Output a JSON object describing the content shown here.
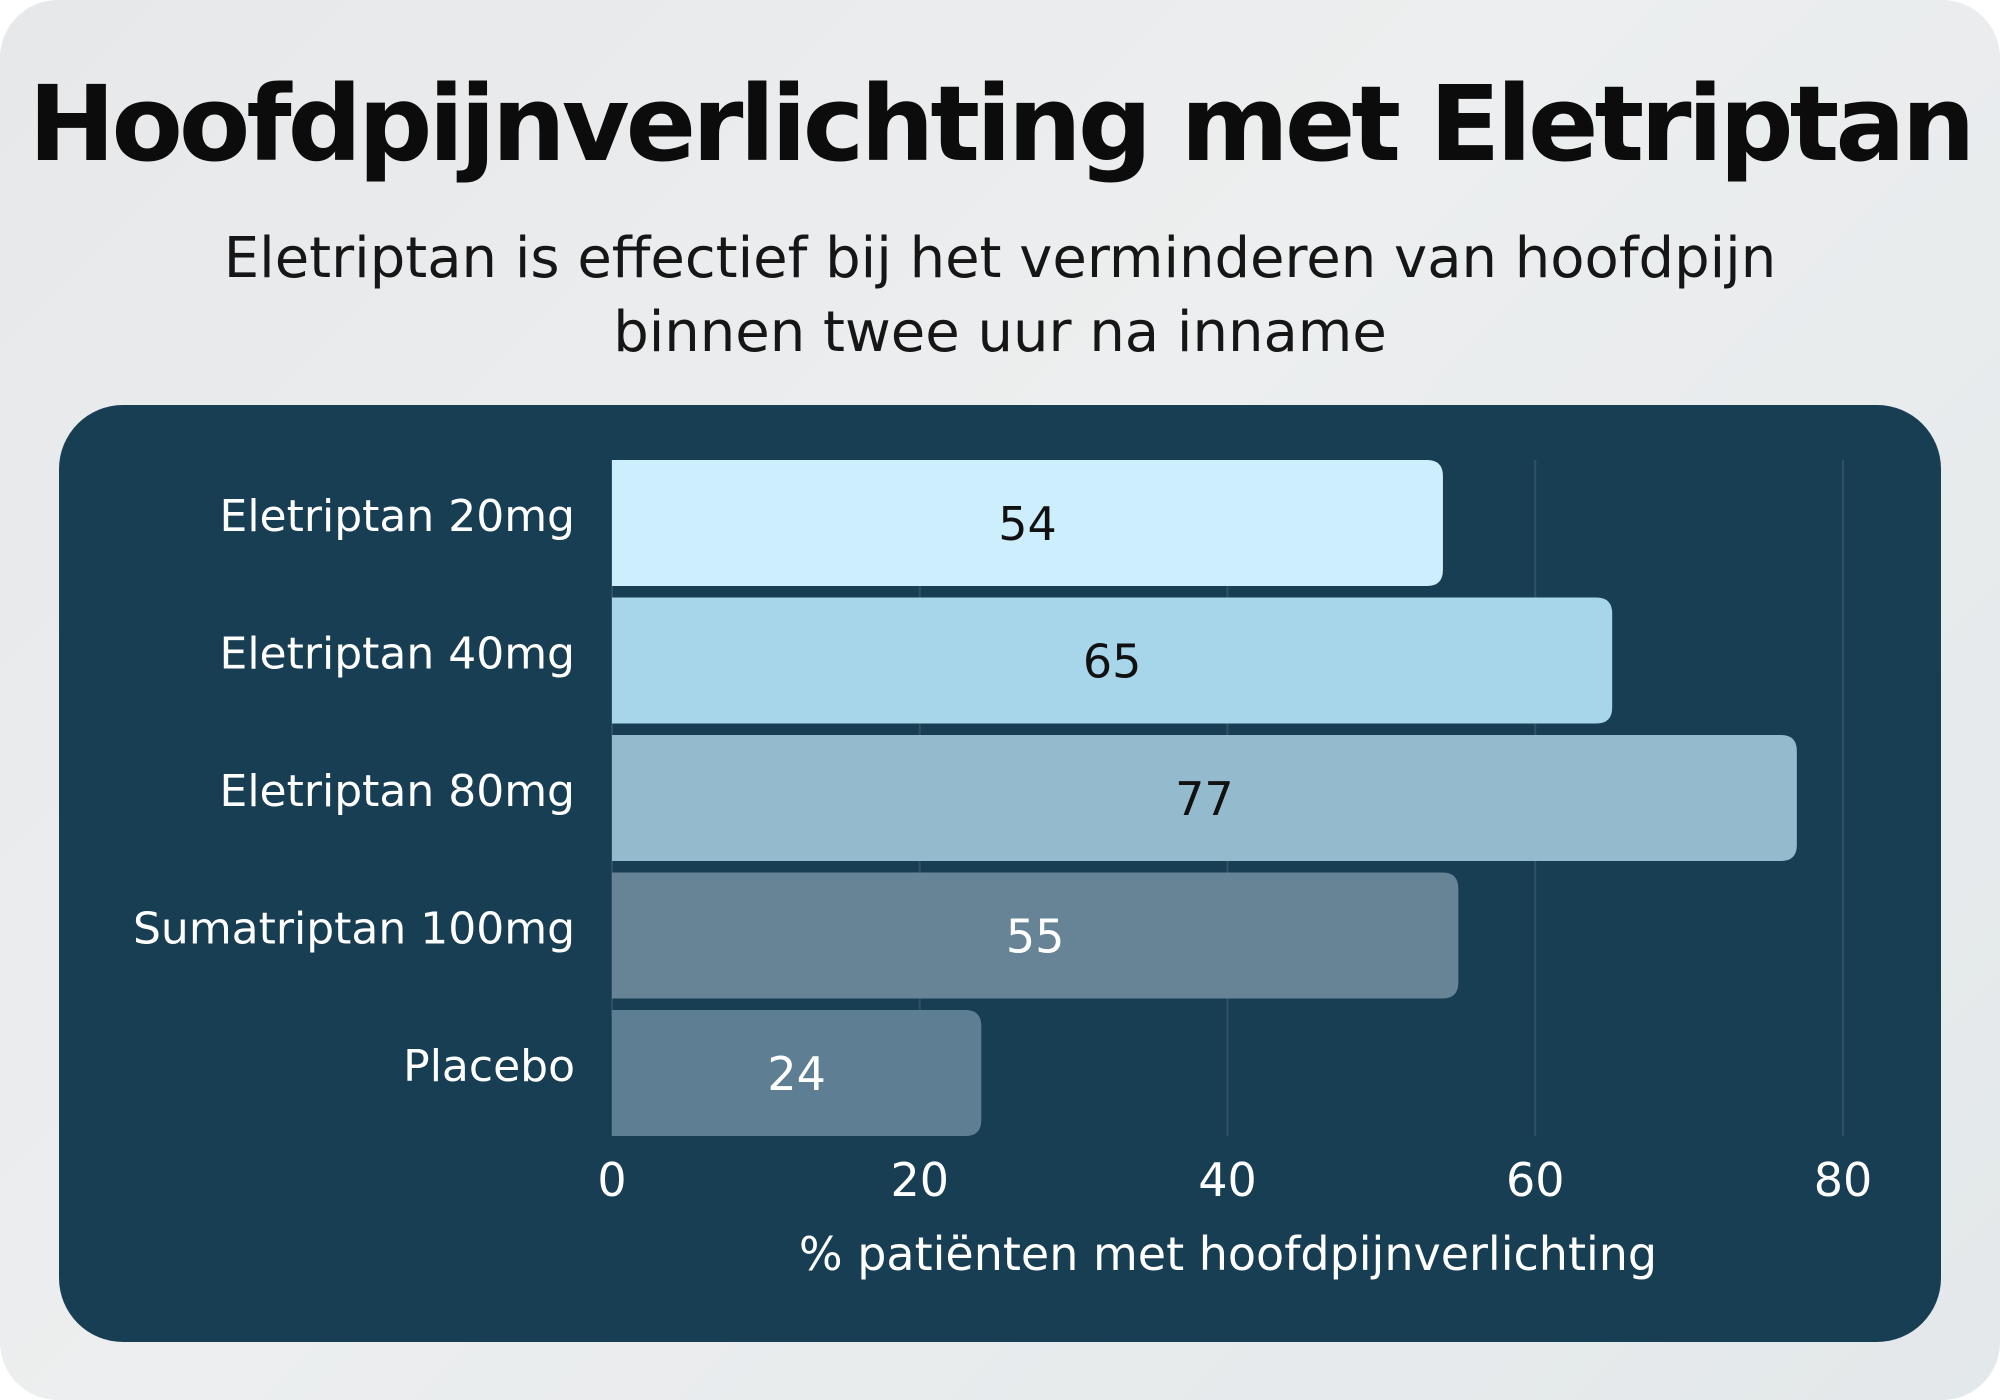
{
  "title": "Hoofdpijnverlichting met Eletriptan",
  "subtitle_lines": [
    "Eletriptan is effectief bij het verminderen van hoofdpijn",
    "binnen twee uur na inname"
  ],
  "colors": {
    "background": "#e9ebec",
    "panel": "#183e54",
    "gridline": "#2f5165",
    "text_dark": "#0c0c0c",
    "text_light": "#ffffff"
  },
  "chart_data": {
    "type": "bar",
    "orientation": "horizontal",
    "title": "Hoofdpijnverlichting met Eletriptan",
    "subtitle": "Eletriptan is effectief bij het verminderen van hoofdpijn binnen twee uur na inname",
    "xlabel": "% patiënten met hoofdpijnverlichting",
    "ylabel": "",
    "xlim": [
      0,
      80
    ],
    "xticks": [
      0,
      20,
      40,
      60,
      80
    ],
    "grid": true,
    "legend": "none",
    "categories": [
      "Eletriptan 20mg",
      "Eletriptan 40mg",
      "Eletriptan 80mg",
      "Sumatriptan 100mg",
      "Placebo"
    ],
    "values": [
      54,
      65,
      77,
      55,
      24
    ],
    "bar_colors": [
      "#cdeefc",
      "#a7d5ea",
      "#93bbcd",
      "#668495",
      "#5e7f93"
    ],
    "label_colors": [
      "#111111",
      "#111111",
      "#111111",
      "#ffffff",
      "#ffffff"
    ]
  }
}
